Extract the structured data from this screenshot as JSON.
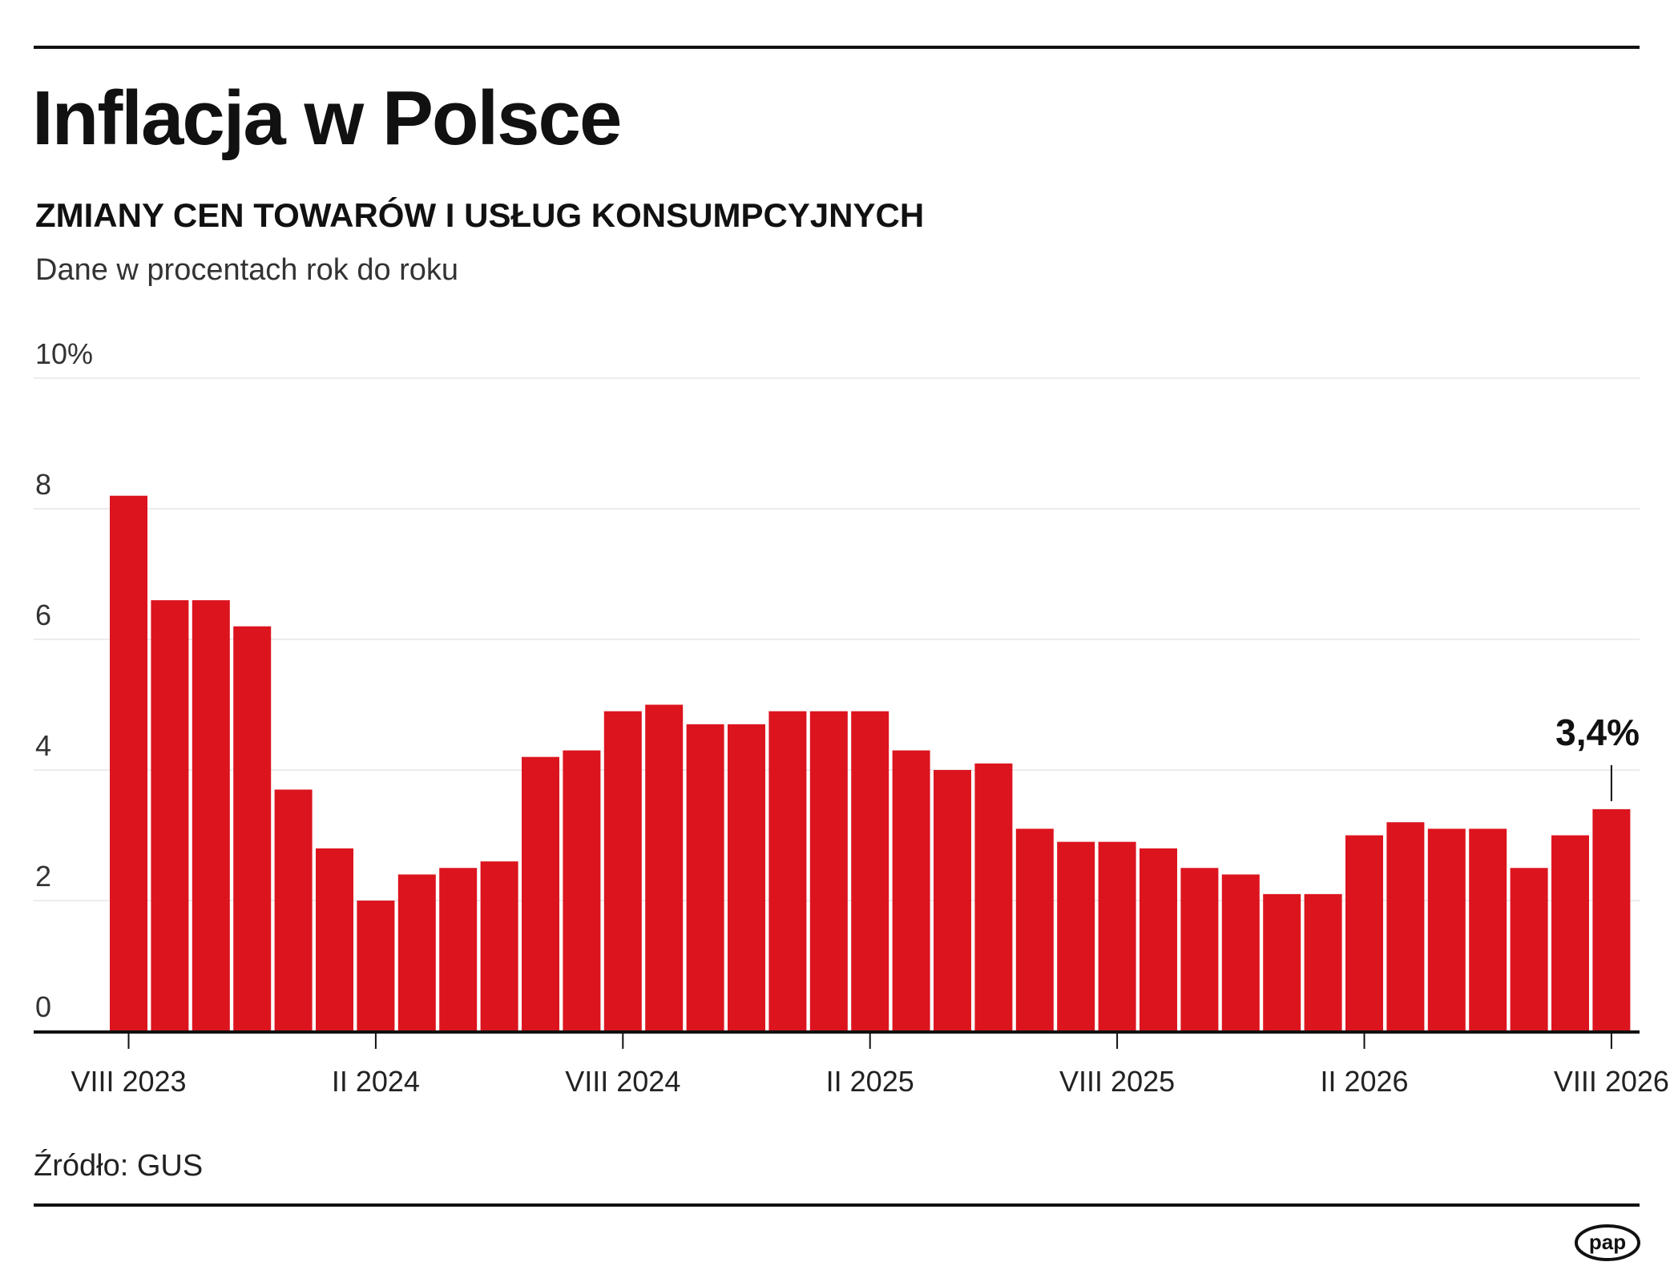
{
  "header": {
    "title": "Inflacja w Polsce",
    "subtitle": "ZMIANY CEN TOWARÓW I USŁUG KONSUMPCYJNYCH",
    "unit_note": "Dane w procentach rok do roku"
  },
  "chart_data": {
    "type": "bar",
    "title": "Inflacja w Polsce",
    "subtitle": "ZMIANY CEN TOWARÓW I USŁUG KONSUMPCYJNYCH",
    "xlabel": "",
    "ylabel": "",
    "ylim": [
      0,
      10
    ],
    "y_ticks": [
      "0",
      "2",
      "4",
      "6",
      "8",
      "10%"
    ],
    "y_tick_values": [
      0,
      2,
      4,
      6,
      8,
      10
    ],
    "x_tick_labels": [
      "VIII 2023",
      "II 2024",
      "VIII 2024",
      "II 2025",
      "VIII 2025",
      "II 2026",
      "VIII 2026"
    ],
    "x_tick_bar_index": [
      0,
      6,
      12,
      18,
      24,
      30,
      36
    ],
    "bar_color": "#dc141e",
    "grid": true,
    "values": [
      8.2,
      6.6,
      6.6,
      6.2,
      3.7,
      2.8,
      2.0,
      2.4,
      2.5,
      2.6,
      4.2,
      4.3,
      4.9,
      5.0,
      4.7,
      4.7,
      4.9,
      4.9,
      4.9,
      4.3,
      4.0,
      4.1,
      3.1,
      2.9,
      2.9,
      2.8,
      2.5,
      2.4,
      2.1,
      2.1,
      3.0,
      3.2,
      3.1,
      3.1,
      2.5,
      3.0,
      3.4
    ],
    "annotation": {
      "bar_index": 36,
      "text": "3,4%"
    }
  },
  "footer": {
    "source": "Źródło: GUS",
    "logo_text": "pap"
  }
}
